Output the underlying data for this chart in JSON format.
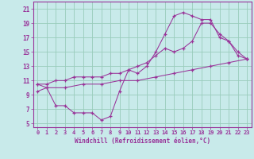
{
  "xlabel": "Windchill (Refroidissement éolien,°C)",
  "bg_color": "#c8eaea",
  "grid_color": "#99ccbb",
  "line_color": "#993399",
  "spine_color": "#993399",
  "xlim": [
    -0.5,
    23.5
  ],
  "ylim": [
    4.5,
    22
  ],
  "xticks": [
    0,
    1,
    2,
    3,
    4,
    5,
    6,
    7,
    8,
    9,
    10,
    11,
    12,
    13,
    14,
    15,
    16,
    17,
    18,
    19,
    20,
    21,
    22,
    23
  ],
  "yticks": [
    5,
    7,
    9,
    11,
    13,
    15,
    17,
    19,
    21
  ],
  "line1_x": [
    0,
    1,
    2,
    3,
    4,
    5,
    6,
    7,
    8,
    9,
    10,
    11,
    12,
    13,
    14,
    15,
    16,
    17,
    18,
    19,
    20,
    21,
    22,
    23
  ],
  "line1_y": [
    10.5,
    10.0,
    7.5,
    7.5,
    6.5,
    6.5,
    6.5,
    5.5,
    6.0,
    9.5,
    12.5,
    12.0,
    13.0,
    15.0,
    17.5,
    20.0,
    20.5,
    20.0,
    19.5,
    19.5,
    17.0,
    16.5,
    15.0,
    14.0
  ],
  "line2_x": [
    0,
    1,
    3,
    5,
    7,
    9,
    11,
    13,
    15,
    17,
    19,
    21,
    23
  ],
  "line2_y": [
    9.5,
    10.0,
    10.0,
    10.5,
    10.5,
    11.0,
    11.0,
    11.5,
    12.0,
    12.5,
    13.0,
    13.5,
    14.0
  ],
  "line3_x": [
    0,
    1,
    2,
    3,
    4,
    5,
    6,
    7,
    8,
    9,
    10,
    11,
    12,
    13,
    14,
    15,
    16,
    17,
    18,
    19,
    20,
    21,
    22,
    23
  ],
  "line3_y": [
    10.5,
    10.5,
    11.0,
    11.0,
    11.5,
    11.5,
    11.5,
    11.5,
    12.0,
    12.0,
    12.5,
    13.0,
    13.5,
    14.5,
    15.5,
    15.0,
    15.5,
    16.5,
    19.0,
    19.0,
    17.5,
    16.5,
    14.5,
    14.0
  ]
}
